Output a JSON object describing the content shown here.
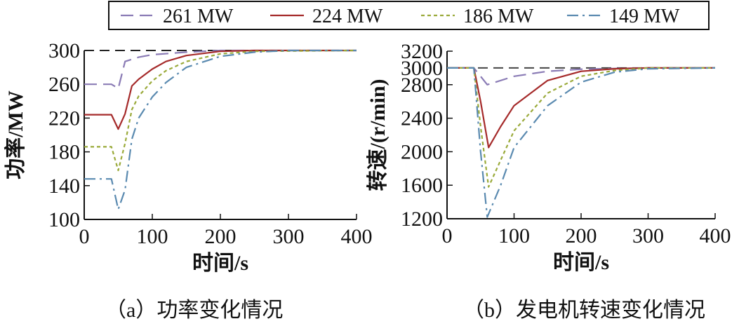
{
  "legend": {
    "placement": "top",
    "entries": [
      {
        "name": "261 MW",
        "color": "#8a7bb5",
        "dash": "dashed"
      },
      {
        "name": "224 MW",
        "color": "#a52a2a",
        "dash": "solid"
      },
      {
        "name": "186 MW",
        "color": "#9aaa3a",
        "dash": "dotted"
      },
      {
        "name": "149 MW",
        "color": "#5a8ab0",
        "dash": "dashdot"
      }
    ]
  },
  "chart_data": [
    {
      "type": "line",
      "caption": "（a）功率变化情况",
      "xlabel": "时间/s",
      "ylabel": "功率/MW",
      "xlim": [
        0,
        400
      ],
      "ylim": [
        100,
        300
      ],
      "xticks": [
        "0",
        "100",
        "200",
        "300",
        "400"
      ],
      "yticks": [
        "100",
        "140",
        "180",
        "220",
        "260",
        "300"
      ],
      "grid": false,
      "reference": {
        "y": 300,
        "color": "#222222",
        "dash": "dashed"
      },
      "series": [
        {
          "name": "261 MW",
          "points": [
            [
              0,
              260
            ],
            [
              40,
              260
            ],
            [
              50,
              255
            ],
            [
              60,
              287
            ],
            [
              80,
              292
            ],
            [
              100,
              295
            ],
            [
              150,
              298
            ],
            [
              200,
              300
            ],
            [
              400,
              300
            ]
          ]
        },
        {
          "name": "224 MW",
          "points": [
            [
              0,
              224
            ],
            [
              40,
              224
            ],
            [
              50,
              207
            ],
            [
              60,
              225
            ],
            [
              70,
              258
            ],
            [
              80,
              266
            ],
            [
              100,
              278
            ],
            [
              120,
              287
            ],
            [
              150,
              294
            ],
            [
              200,
              299
            ],
            [
              250,
              300
            ],
            [
              400,
              300
            ]
          ]
        },
        {
          "name": "186 MW",
          "points": [
            [
              0,
              186
            ],
            [
              40,
              186
            ],
            [
              50,
              158
            ],
            [
              60,
              190
            ],
            [
              70,
              230
            ],
            [
              80,
              246
            ],
            [
              100,
              264
            ],
            [
              120,
              276
            ],
            [
              150,
              287
            ],
            [
              200,
              296
            ],
            [
              250,
              299
            ],
            [
              400,
              300
            ]
          ]
        },
        {
          "name": "149 MW",
          "points": [
            [
              0,
              148
            ],
            [
              40,
              148
            ],
            [
              50,
              112
            ],
            [
              60,
              135
            ],
            [
              70,
              195
            ],
            [
              80,
              220
            ],
            [
              100,
              245
            ],
            [
              120,
              262
            ],
            [
              150,
              280
            ],
            [
              200,
              293
            ],
            [
              250,
              298
            ],
            [
              300,
              300
            ],
            [
              400,
              300
            ]
          ]
        }
      ]
    },
    {
      "type": "line",
      "caption": "（b）发电机转速变化情况",
      "xlabel": "时间/s",
      "ylabel": "转速/(r/min)",
      "xlim": [
        0,
        400
      ],
      "ylim": [
        1200,
        3200
      ],
      "xticks": [
        "0",
        "100",
        "200",
        "300",
        "400"
      ],
      "yticks": [
        "1200",
        "1600",
        "2000",
        "2400",
        "2800",
        "3000",
        "3200"
      ],
      "grid": false,
      "reference": {
        "y": 3000,
        "color": "#444444",
        "dash": "dashed"
      },
      "series": [
        {
          "name": "261 MW",
          "points": [
            [
              0,
              3000
            ],
            [
              40,
              3000
            ],
            [
              45,
              2950
            ],
            [
              60,
              2800
            ],
            [
              100,
              2900
            ],
            [
              150,
              2960
            ],
            [
              200,
              2985
            ],
            [
              300,
              3000
            ],
            [
              400,
              3000
            ]
          ]
        },
        {
          "name": "224 MW",
          "points": [
            [
              0,
              3000
            ],
            [
              40,
              3000
            ],
            [
              50,
              2600
            ],
            [
              62,
              2050
            ],
            [
              80,
              2300
            ],
            [
              100,
              2550
            ],
            [
              150,
              2850
            ],
            [
              200,
              2960
            ],
            [
              250,
              2990
            ],
            [
              300,
              3000
            ],
            [
              400,
              3000
            ]
          ]
        },
        {
          "name": "186 MW",
          "points": [
            [
              0,
              3000
            ],
            [
              40,
              3000
            ],
            [
              50,
              2300
            ],
            [
              62,
              1580
            ],
            [
              80,
              1900
            ],
            [
              100,
              2250
            ],
            [
              150,
              2700
            ],
            [
              200,
              2900
            ],
            [
              250,
              2970
            ],
            [
              300,
              3000
            ],
            [
              400,
              3000
            ]
          ]
        },
        {
          "name": "149 MW",
          "points": [
            [
              0,
              3000
            ],
            [
              40,
              3000
            ],
            [
              50,
              2000
            ],
            [
              60,
              1220
            ],
            [
              80,
              1600
            ],
            [
              100,
              2050
            ],
            [
              150,
              2550
            ],
            [
              200,
              2830
            ],
            [
              250,
              2950
            ],
            [
              300,
              2990
            ],
            [
              400,
              3000
            ]
          ]
        }
      ]
    }
  ]
}
